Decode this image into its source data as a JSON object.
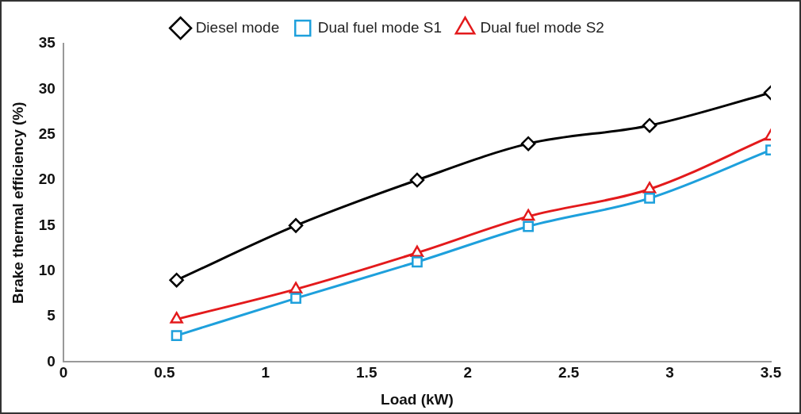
{
  "chart_data": {
    "type": "line",
    "xlabel": "Load (kW)",
    "ylabel": "Brake thermal efficiency (%)",
    "x": [
      0.56,
      1.15,
      1.75,
      2.3,
      2.9,
      3.5
    ],
    "series": [
      {
        "name": "Diesel mode",
        "color": "#000000",
        "marker": "diamond",
        "values": [
          9,
          15,
          20,
          24,
          26,
          29.6
        ]
      },
      {
        "name": "Dual fuel mode S1",
        "color": "#1ea0dc",
        "marker": "square",
        "values": [
          2.9,
          7,
          11,
          14.9,
          18,
          23.3
        ]
      },
      {
        "name": "Dual fuel mode S2",
        "color": "#e31a1c",
        "marker": "triangle",
        "values": [
          4.7,
          8,
          12,
          16,
          19,
          24.8
        ]
      }
    ],
    "xlim": [
      0,
      3.5
    ],
    "xticks": [
      0,
      0.5,
      1,
      1.5,
      2,
      2.5,
      3,
      3.5
    ],
    "ylim": [
      0,
      35
    ],
    "yticks": [
      0,
      5,
      10,
      15,
      20,
      25,
      30,
      35
    ],
    "grid": false,
    "legend": "top",
    "line_style": "solid"
  }
}
